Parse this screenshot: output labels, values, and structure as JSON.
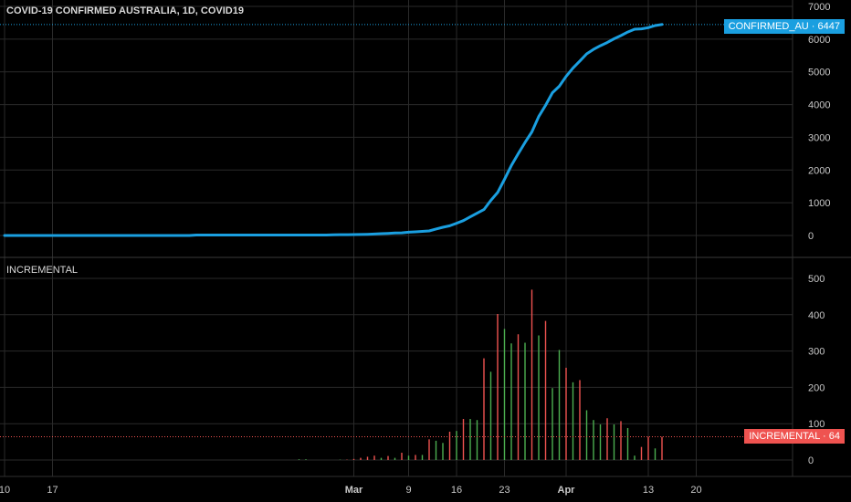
{
  "header": {
    "title": "COVID-19 CONFIRMED AUSTRALIA, 1D, COVID19",
    "incremental_title": "INCREMENTAL"
  },
  "badges": {
    "confirmed": "CONFIRMED_AU · 6447",
    "incremental": "INCREMENTAL · 64"
  },
  "colors": {
    "line": "#1a9fe0",
    "up": "#4caf50",
    "down": "#ef5350",
    "grid": "#2a2a2a",
    "background": "#000000"
  },
  "chart_data": [
    {
      "type": "line",
      "series": [
        {
          "name": "CONFIRMED_AU",
          "x": [
            "2020-01-10",
            "2020-01-11",
            "2020-01-12",
            "2020-01-13",
            "2020-01-14",
            "2020-01-15",
            "2020-01-16",
            "2020-01-17",
            "2020-01-18",
            "2020-01-19",
            "2020-01-20",
            "2020-01-21",
            "2020-01-22",
            "2020-01-23",
            "2020-01-24",
            "2020-01-25",
            "2020-01-26",
            "2020-01-27",
            "2020-01-28",
            "2020-01-29",
            "2020-01-30",
            "2020-01-31",
            "2020-02-01",
            "2020-02-02",
            "2020-02-03",
            "2020-02-04",
            "2020-02-05",
            "2020-02-06",
            "2020-02-07",
            "2020-02-08",
            "2020-02-09",
            "2020-02-10",
            "2020-02-11",
            "2020-02-12",
            "2020-02-13",
            "2020-02-14",
            "2020-02-15",
            "2020-02-16",
            "2020-02-17",
            "2020-02-18",
            "2020-02-19",
            "2020-02-20",
            "2020-02-21",
            "2020-02-22",
            "2020-02-23",
            "2020-02-24",
            "2020-02-25",
            "2020-02-26",
            "2020-02-27",
            "2020-02-28",
            "2020-02-29",
            "2020-03-01",
            "2020-03-02",
            "2020-03-03",
            "2020-03-04",
            "2020-03-05",
            "2020-03-06",
            "2020-03-07",
            "2020-03-08",
            "2020-03-09",
            "2020-03-10",
            "2020-03-11",
            "2020-03-12",
            "2020-03-13",
            "2020-03-14",
            "2020-03-15",
            "2020-03-16",
            "2020-03-17",
            "2020-03-18",
            "2020-03-19",
            "2020-03-20",
            "2020-03-21",
            "2020-03-22",
            "2020-03-23",
            "2020-03-24",
            "2020-03-25",
            "2020-03-26",
            "2020-03-27",
            "2020-03-28",
            "2020-03-29",
            "2020-03-30",
            "2020-03-31",
            "2020-04-01",
            "2020-04-02",
            "2020-04-03",
            "2020-04-04",
            "2020-04-05",
            "2020-04-06",
            "2020-04-07",
            "2020-04-08",
            "2020-04-09",
            "2020-04-10",
            "2020-04-11",
            "2020-04-12",
            "2020-04-13",
            "2020-04-14",
            "2020-04-15"
          ],
          "values": [
            0,
            0,
            0,
            0,
            0,
            0,
            0,
            0,
            0,
            0,
            0,
            0,
            0,
            0,
            0,
            0,
            0,
            0,
            0,
            0,
            0,
            0,
            0,
            0,
            0,
            0,
            0,
            0,
            15,
            15,
            15,
            15,
            15,
            15,
            15,
            15,
            15,
            15,
            15,
            15,
            15,
            15,
            15,
            15,
            15,
            15,
            15,
            15,
            23,
            25,
            26,
            27,
            30,
            36,
            45,
            57,
            63,
            74,
            80,
            100,
            112,
            126,
            140,
            197,
            250,
            297,
            375,
            455,
            568,
            681,
            791,
            1071,
            1314,
            1716,
            2136,
            2497,
            2843,
            3166,
            3635,
            3978,
            4361,
            4559,
            4862,
            5116,
            5330,
            5550,
            5687,
            5797,
            5895,
            6010,
            6108,
            6215,
            6303,
            6315,
            6351,
            6415,
            6447
          ]
        }
      ],
      "ylim": [
        -500,
        7000
      ],
      "yticks": [
        0,
        1000,
        2000,
        3000,
        4000,
        5000,
        6000,
        7000
      ],
      "xlabels": [
        {
          "date": "2020-01-10",
          "label": "10"
        },
        {
          "date": "2020-01-17",
          "label": "17"
        },
        {
          "date": "2020-03-01",
          "label": "Mar"
        },
        {
          "date": "2020-03-09",
          "label": "9"
        },
        {
          "date": "2020-03-16",
          "label": "16"
        },
        {
          "date": "2020-03-23",
          "label": "23"
        },
        {
          "date": "2020-04-01",
          "label": "Apr"
        },
        {
          "date": "2020-04-13",
          "label": "13"
        },
        {
          "date": "2020-04-20",
          "label": "20"
        }
      ],
      "last_value": 6447,
      "grid": true
    },
    {
      "type": "bar",
      "series": [
        {
          "name": "INCREMENTAL",
          "x": [
            "2020-02-22",
            "2020-02-23",
            "2020-02-28",
            "2020-02-29",
            "2020-03-01",
            "2020-03-02",
            "2020-03-03",
            "2020-03-04",
            "2020-03-05",
            "2020-03-06",
            "2020-03-07",
            "2020-03-08",
            "2020-03-09",
            "2020-03-10",
            "2020-03-11",
            "2020-03-12",
            "2020-03-13",
            "2020-03-14",
            "2020-03-15",
            "2020-03-16",
            "2020-03-17",
            "2020-03-18",
            "2020-03-19",
            "2020-03-20",
            "2020-03-21",
            "2020-03-22",
            "2020-03-23",
            "2020-03-24",
            "2020-03-25",
            "2020-03-26",
            "2020-03-27",
            "2020-03-28",
            "2020-03-29",
            "2020-03-30",
            "2020-03-31",
            "2020-04-01",
            "2020-04-02",
            "2020-04-03",
            "2020-04-04",
            "2020-04-05",
            "2020-04-06",
            "2020-04-07",
            "2020-04-08",
            "2020-04-09",
            "2020-04-10",
            "2020-04-11",
            "2020-04-12",
            "2020-04-13",
            "2020-04-14",
            "2020-04-15"
          ],
          "values": [
            2,
            2,
            1,
            1,
            3,
            6,
            9,
            12,
            6,
            11,
            6,
            20,
            12,
            14,
            14,
            57,
            53,
            47,
            78,
            80,
            113,
            113,
            110,
            280,
            243,
            402,
            361,
            321,
            346,
            323,
            469,
            343,
            383,
            198,
            303,
            254,
            214,
            220,
            137,
            110,
            98,
            115,
            98,
            107,
            88,
            12,
            36,
            64,
            32,
            64
          ],
          "direction": [
            "up",
            "up",
            "up",
            "down",
            "down",
            "down",
            "down",
            "down",
            "up",
            "down",
            "up",
            "down",
            "up",
            "down",
            "up",
            "down",
            "up",
            "up",
            "down",
            "up",
            "down",
            "up",
            "up",
            "down",
            "up",
            "down",
            "up",
            "up",
            "down",
            "up",
            "down",
            "up",
            "down",
            "up",
            "up",
            "down",
            "up",
            "down",
            "up",
            "up",
            "up",
            "down",
            "up",
            "down",
            "up",
            "up",
            "down",
            "down",
            "up",
            "down"
          ]
        }
      ],
      "ylim": [
        -30,
        520
      ],
      "yticks": [
        0,
        100,
        200,
        300,
        400,
        500
      ],
      "last_value": 64,
      "grid": true
    }
  ]
}
